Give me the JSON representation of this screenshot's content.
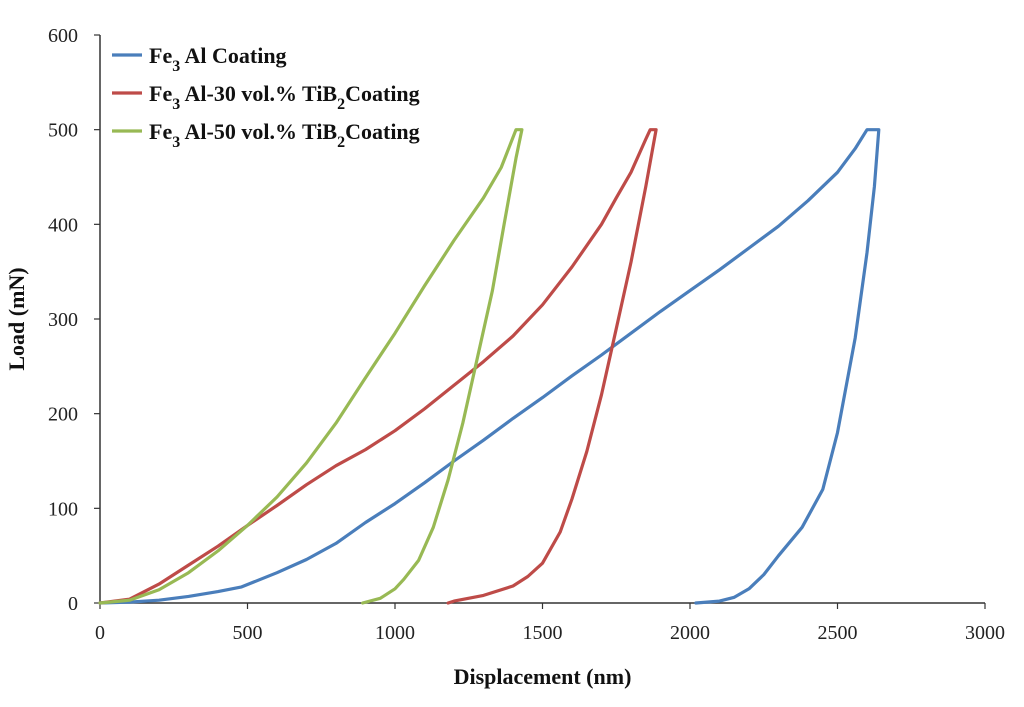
{
  "chart_data": {
    "type": "line",
    "title": "",
    "xlabel": "Displacement (nm)",
    "ylabel": "Load (mN)",
    "xlim": [
      0,
      3000
    ],
    "ylim": [
      0,
      600
    ],
    "x_ticks": [
      0,
      500,
      1000,
      1500,
      2000,
      2500,
      3000
    ],
    "y_ticks": [
      0,
      100,
      200,
      300,
      400,
      500,
      600
    ],
    "grid": false,
    "legend_position": "top-left",
    "series": [
      {
        "name": "Fe3Al Coating",
        "legend": {
          "pre": "Fe",
          "sub1": "3",
          "mid": "Al Coating",
          "sub2": "",
          "post": ""
        },
        "color": "#4a7ebb",
        "points": [
          [
            0,
            0
          ],
          [
            100,
            1
          ],
          [
            200,
            3
          ],
          [
            300,
            7
          ],
          [
            400,
            12
          ],
          [
            480,
            17
          ],
          [
            600,
            32
          ],
          [
            700,
            46
          ],
          [
            800,
            63
          ],
          [
            900,
            85
          ],
          [
            1000,
            105
          ],
          [
            1100,
            127
          ],
          [
            1200,
            150
          ],
          [
            1300,
            172
          ],
          [
            1400,
            195
          ],
          [
            1500,
            217
          ],
          [
            1600,
            240
          ],
          [
            1700,
            262
          ],
          [
            1800,
            285
          ],
          [
            1900,
            308
          ],
          [
            2000,
            330
          ],
          [
            2100,
            352
          ],
          [
            2200,
            375
          ],
          [
            2300,
            398
          ],
          [
            2400,
            425
          ],
          [
            2500,
            455
          ],
          [
            2560,
            480
          ],
          [
            2600,
            500
          ],
          [
            2640,
            500
          ],
          [
            2625,
            440
          ],
          [
            2600,
            370
          ],
          [
            2560,
            280
          ],
          [
            2500,
            180
          ],
          [
            2450,
            120
          ],
          [
            2380,
            80
          ],
          [
            2300,
            50
          ],
          [
            2250,
            30
          ],
          [
            2200,
            15
          ],
          [
            2150,
            6
          ],
          [
            2100,
            2
          ],
          [
            2020,
            0
          ]
        ]
      },
      {
        "name": "Fe3Al-30 vol.% TiB2 Coating",
        "legend": {
          "pre": "Fe",
          "sub1": "3",
          "mid": "Al-30 vol.% TiB",
          "sub2": "2",
          "post": "Coating"
        },
        "color": "#be4b48",
        "points": [
          [
            0,
            0
          ],
          [
            100,
            4
          ],
          [
            200,
            20
          ],
          [
            300,
            40
          ],
          [
            400,
            60
          ],
          [
            500,
            82
          ],
          [
            600,
            103
          ],
          [
            700,
            125
          ],
          [
            800,
            145
          ],
          [
            900,
            162
          ],
          [
            1000,
            182
          ],
          [
            1100,
            205
          ],
          [
            1200,
            230
          ],
          [
            1300,
            255
          ],
          [
            1400,
            282
          ],
          [
            1500,
            315
          ],
          [
            1600,
            355
          ],
          [
            1700,
            400
          ],
          [
            1750,
            428
          ],
          [
            1800,
            455
          ],
          [
            1850,
            490
          ],
          [
            1865,
            500
          ],
          [
            1885,
            500
          ],
          [
            1850,
            440
          ],
          [
            1800,
            360
          ],
          [
            1750,
            290
          ],
          [
            1700,
            220
          ],
          [
            1650,
            160
          ],
          [
            1600,
            110
          ],
          [
            1560,
            75
          ],
          [
            1500,
            42
          ],
          [
            1450,
            28
          ],
          [
            1400,
            18
          ],
          [
            1300,
            8
          ],
          [
            1200,
            2
          ],
          [
            1180,
            0
          ]
        ]
      },
      {
        "name": "Fe3Al-50 vol.% TiB2 Coating",
        "legend": {
          "pre": "Fe",
          "sub1": "3",
          "mid": "Al-50 vol.% TiB",
          "sub2": "2",
          "post": "Coating"
        },
        "color": "#98b954",
        "points": [
          [
            0,
            0
          ],
          [
            100,
            3
          ],
          [
            200,
            14
          ],
          [
            300,
            32
          ],
          [
            400,
            55
          ],
          [
            500,
            82
          ],
          [
            600,
            112
          ],
          [
            700,
            148
          ],
          [
            800,
            190
          ],
          [
            900,
            238
          ],
          [
            1000,
            285
          ],
          [
            1100,
            335
          ],
          [
            1200,
            383
          ],
          [
            1300,
            428
          ],
          [
            1360,
            460
          ],
          [
            1410,
            500
          ],
          [
            1430,
            500
          ],
          [
            1410,
            470
          ],
          [
            1370,
            400
          ],
          [
            1330,
            330
          ],
          [
            1280,
            260
          ],
          [
            1230,
            190
          ],
          [
            1180,
            130
          ],
          [
            1130,
            80
          ],
          [
            1080,
            45
          ],
          [
            1030,
            25
          ],
          [
            1000,
            15
          ],
          [
            950,
            5
          ],
          [
            890,
            0
          ]
        ]
      }
    ]
  }
}
